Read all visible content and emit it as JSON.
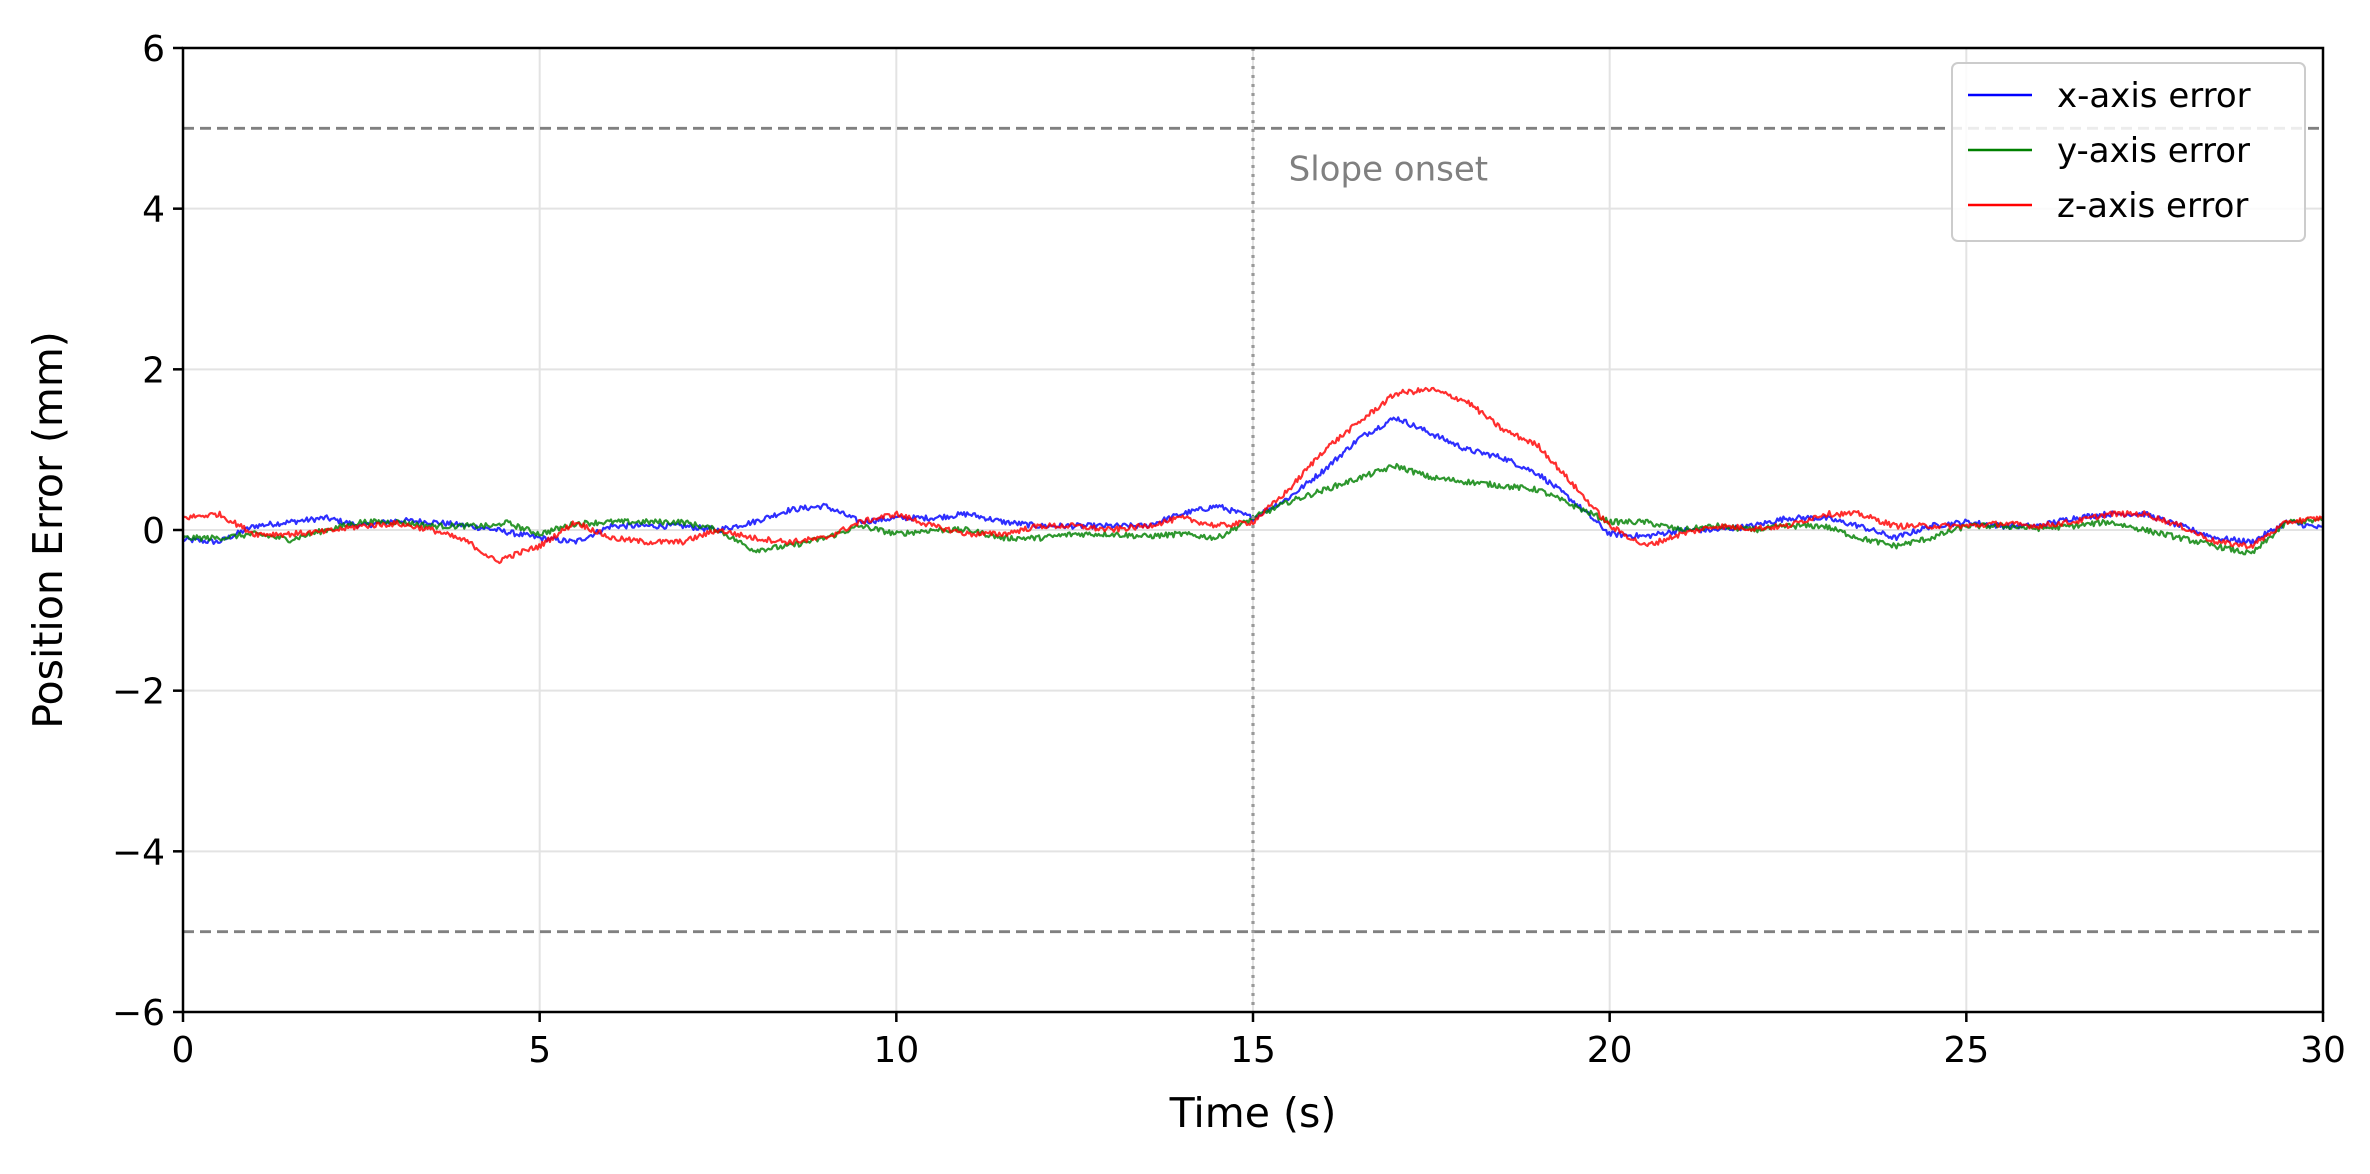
{
  "chart_data": {
    "type": "line",
    "title": "",
    "xlabel": "Time (s)",
    "ylabel": "Position Error (mm)",
    "xlim": [
      0,
      30
    ],
    "ylim": [
      -6,
      6
    ],
    "xticks": [
      0,
      5,
      10,
      15,
      20,
      25,
      30
    ],
    "yticks": [
      -6,
      -4,
      -2,
      0,
      2,
      4,
      6
    ],
    "xtick_labels": [
      "0",
      "5",
      "10",
      "15",
      "20",
      "25",
      "30"
    ],
    "ytick_labels": [
      "−6",
      "−4",
      "−2",
      "0",
      "2",
      "4",
      "6"
    ],
    "grid": true,
    "legend_position": "top-right",
    "thresholds": [
      {
        "value": 5,
        "color": "#808080",
        "style": "dashed"
      },
      {
        "value": -5,
        "color": "#808080",
        "style": "dashed"
      }
    ],
    "annotations": [
      {
        "text": "Slope onset",
        "x": 15,
        "type": "vertical-dotted-line",
        "color": "#808080"
      }
    ],
    "x": [
      0,
      0.5,
      1,
      1.5,
      2,
      2.5,
      3,
      3.5,
      4,
      4.4,
      4.5,
      5,
      5.5,
      6,
      6.5,
      7,
      7.5,
      8,
      8.5,
      9,
      9.5,
      10,
      10.5,
      11,
      11.5,
      12,
      12.5,
      13,
      13.5,
      14,
      14.5,
      15,
      15.5,
      16,
      16.5,
      17,
      17.5,
      18,
      18.5,
      19,
      19.5,
      20,
      20.5,
      21,
      21.5,
      22,
      22.5,
      23,
      23.5,
      24,
      24.5,
      25,
      25.5,
      26,
      26.5,
      27,
      27.5,
      28,
      28.5,
      29,
      29.5,
      30
    ],
    "series": [
      {
        "name": "x-axis error",
        "color": "#0000ff",
        "values": [
          -0.12,
          -0.15,
          0.05,
          0.1,
          0.15,
          0.05,
          0.12,
          0.1,
          0.05,
          0,
          -0.02,
          -0.1,
          -0.15,
          0.05,
          0.05,
          0.05,
          0,
          0.1,
          0.25,
          0.3,
          0.1,
          0.15,
          0.15,
          0.2,
          0.1,
          0.05,
          0.05,
          0.05,
          0.05,
          0.2,
          0.3,
          0.15,
          0.4,
          0.75,
          1.15,
          1.4,
          1.2,
          1.0,
          0.9,
          0.7,
          0.35,
          -0.05,
          -0.08,
          0,
          0.0,
          0.05,
          0.15,
          0.15,
          0.05,
          -0.1,
          0.05,
          0.1,
          0.05,
          0.05,
          0.15,
          0.2,
          0.2,
          0.05,
          -0.1,
          -0.15,
          0.1,
          0.02
        ]
      },
      {
        "name": "y-axis error",
        "color": "#008000",
        "values": [
          -0.1,
          -0.1,
          -0.05,
          -0.12,
          0,
          0.1,
          0.1,
          0.05,
          0.05,
          0.05,
          0.1,
          -0.05,
          0.08,
          0.1,
          0.1,
          0.1,
          0,
          -0.25,
          -0.2,
          -0.1,
          0.05,
          -0.05,
          0,
          0,
          -0.1,
          -0.1,
          -0.05,
          -0.05,
          -0.08,
          -0.05,
          -0.1,
          0.15,
          0.35,
          0.5,
          0.65,
          0.8,
          0.65,
          0.6,
          0.55,
          0.5,
          0.3,
          0.1,
          0.1,
          0,
          0.05,
          0,
          0.05,
          0.05,
          -0.1,
          -0.2,
          -0.1,
          0.05,
          0.05,
          0.02,
          0.05,
          0.1,
          0,
          -0.1,
          -0.2,
          -0.3,
          0.1,
          0.12
        ]
      },
      {
        "name": "z-axis error",
        "color": "#ff0000",
        "values": [
          0.15,
          0.2,
          -0.05,
          -0.05,
          -0.02,
          0.05,
          0.08,
          0,
          -0.15,
          -0.4,
          -0.35,
          -0.2,
          0.1,
          -0.1,
          -0.15,
          -0.15,
          0,
          -0.1,
          -0.15,
          -0.1,
          0.1,
          0.2,
          0.05,
          -0.05,
          -0.05,
          0.05,
          0.05,
          0,
          0.05,
          0.15,
          0.05,
          0.1,
          0.5,
          1.0,
          1.35,
          1.7,
          1.75,
          1.6,
          1.25,
          1.05,
          0.55,
          0.05,
          -0.2,
          -0.05,
          0.05,
          0.02,
          0.05,
          0.2,
          0.2,
          0.05,
          0.05,
          0.05,
          0.08,
          0.05,
          0.1,
          0.2,
          0.2,
          0.05,
          -0.15,
          -0.2,
          0.1,
          0.15
        ]
      }
    ]
  }
}
